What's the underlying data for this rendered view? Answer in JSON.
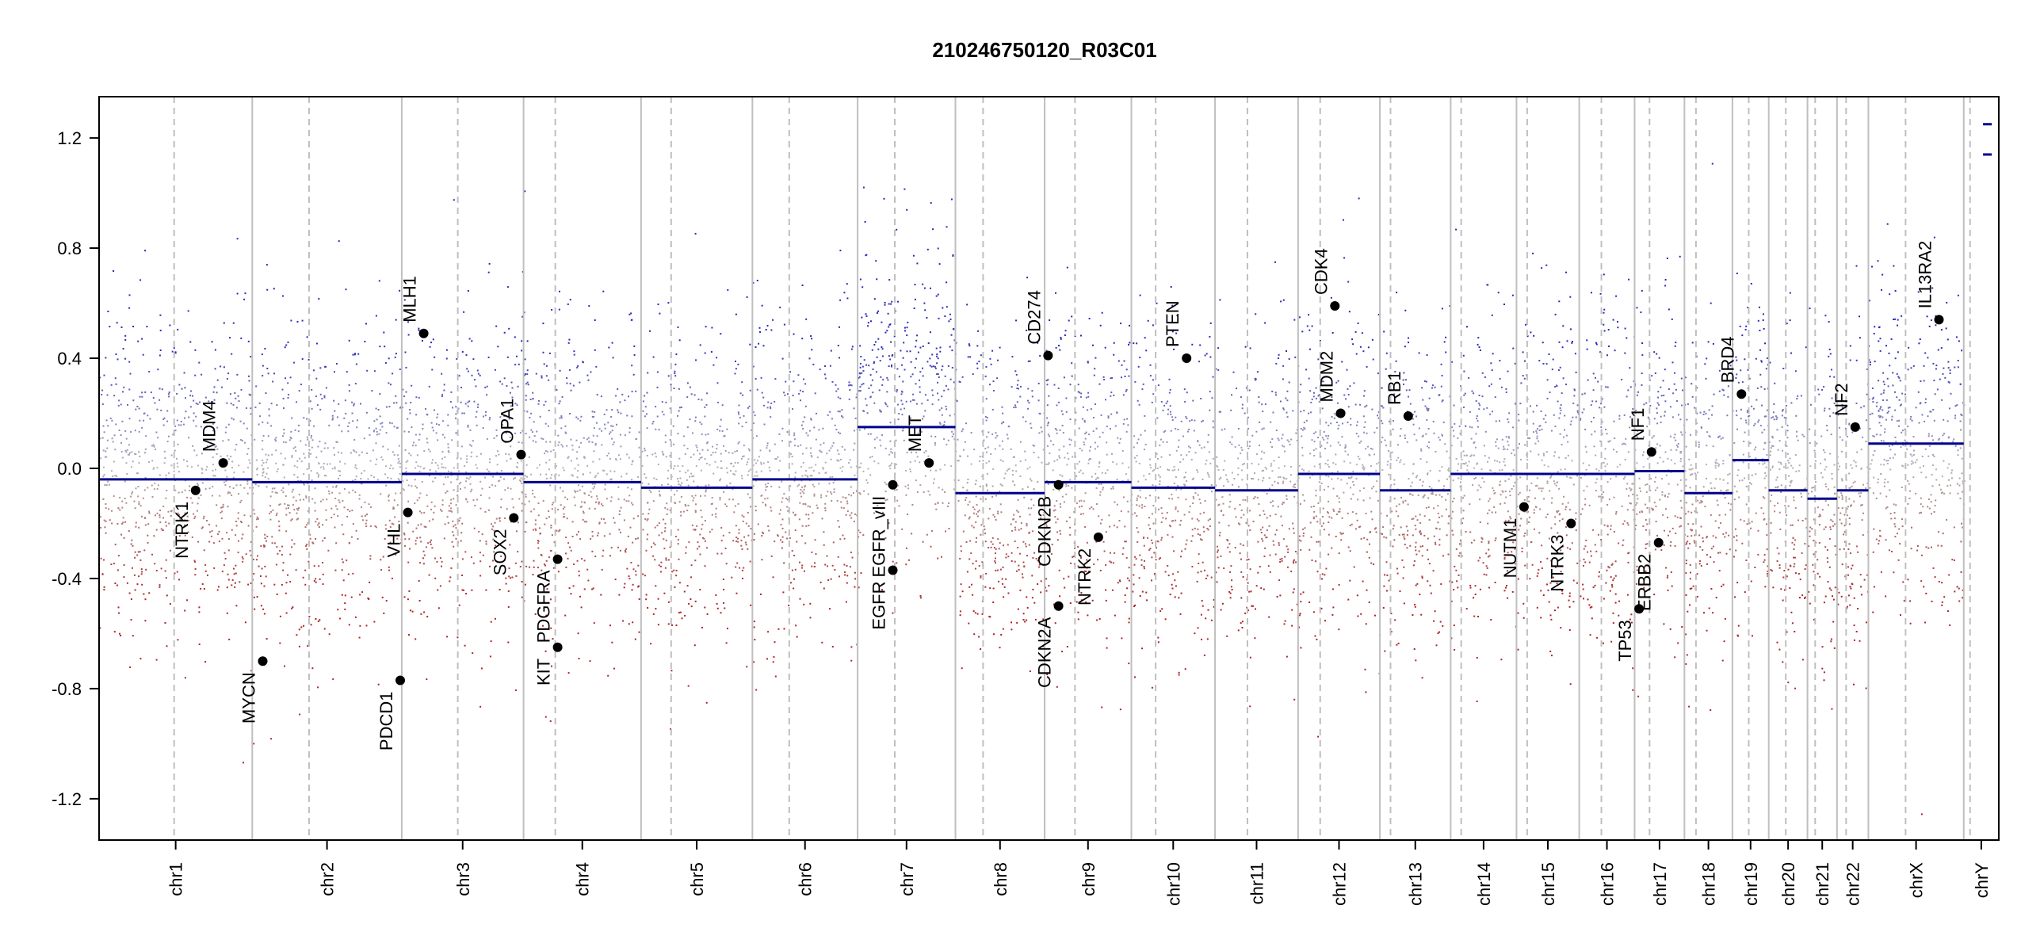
{
  "chart_data": {
    "type": "scatter",
    "title": "210246750120_R03C01",
    "xlabel": "",
    "ylabel": "",
    "ylim": [
      -1.35,
      1.35
    ],
    "y_ticks": [
      -1.2,
      -0.8,
      -0.4,
      0.0,
      0.4,
      0.8,
      1.2
    ],
    "y_tick_labels": [
      "-1.2",
      "-0.8",
      "-0.4",
      "0.0",
      "0.4",
      "0.8",
      "1.2"
    ],
    "colors": {
      "gain": "#3030b8",
      "loss": "#b52020",
      "neutral": "#9a9a9a",
      "segment": "#00008b",
      "boundary": "#bfbfbf",
      "centromere": "#bfbfbf"
    },
    "chromosomes": [
      {
        "name": "chr1",
        "length": 249,
        "centromere": 0.49,
        "segments": [
          {
            "from": 0,
            "to": 1,
            "value": -0.04
          }
        ]
      },
      {
        "name": "chr2",
        "length": 243,
        "centromere": 0.38,
        "segments": [
          {
            "from": 0,
            "to": 1,
            "value": -0.05
          }
        ]
      },
      {
        "name": "chr3",
        "length": 198,
        "centromere": 0.46,
        "segments": [
          {
            "from": 0,
            "to": 1,
            "value": -0.02
          }
        ]
      },
      {
        "name": "chr4",
        "length": 191,
        "centromere": 0.27,
        "segments": [
          {
            "from": 0,
            "to": 1,
            "value": -0.05
          }
        ]
      },
      {
        "name": "chr5",
        "length": 181,
        "centromere": 0.27,
        "segments": [
          {
            "from": 0,
            "to": 1,
            "value": -0.07
          }
        ]
      },
      {
        "name": "chr6",
        "length": 171,
        "centromere": 0.35,
        "segments": [
          {
            "from": 0,
            "to": 1,
            "value": -0.04
          }
        ]
      },
      {
        "name": "chr7",
        "length": 159,
        "centromere": 0.38,
        "segments": [
          {
            "from": 0,
            "to": 1,
            "value": 0.15
          }
        ]
      },
      {
        "name": "chr8",
        "length": 145,
        "centromere": 0.31,
        "segments": [
          {
            "from": 0,
            "to": 1,
            "value": -0.09
          }
        ]
      },
      {
        "name": "chr9",
        "length": 141,
        "centromere": 0.35,
        "segments": [
          {
            "from": 0,
            "to": 1,
            "value": -0.05
          }
        ]
      },
      {
        "name": "chr10",
        "length": 136,
        "centromere": 0.29,
        "segments": [
          {
            "from": 0,
            "to": 1,
            "value": -0.07
          }
        ]
      },
      {
        "name": "chr11",
        "length": 135,
        "centromere": 0.39,
        "segments": [
          {
            "from": 0,
            "to": 1,
            "value": -0.08
          }
        ]
      },
      {
        "name": "chr12",
        "length": 133,
        "centromere": 0.27,
        "segments": [
          {
            "from": 0,
            "to": 1,
            "value": -0.02
          }
        ]
      },
      {
        "name": "chr13",
        "length": 115,
        "centromere": 0.15,
        "segments": [
          {
            "from": 0,
            "to": 1,
            "value": -0.08
          }
        ]
      },
      {
        "name": "chr14",
        "length": 107,
        "centromere": 0.16,
        "segments": [
          {
            "from": 0,
            "to": 1,
            "value": -0.02
          }
        ]
      },
      {
        "name": "chr15",
        "length": 102,
        "centromere": 0.17,
        "segments": [
          {
            "from": 0,
            "to": 1,
            "value": -0.02
          }
        ]
      },
      {
        "name": "chr16",
        "length": 90,
        "centromere": 0.4,
        "segments": [
          {
            "from": 0,
            "to": 1,
            "value": -0.02
          }
        ]
      },
      {
        "name": "chr17",
        "length": 81,
        "centromere": 0.3,
        "segments": [
          {
            "from": 0,
            "to": 1,
            "value": -0.01
          }
        ]
      },
      {
        "name": "chr18",
        "length": 78,
        "centromere": 0.24,
        "segments": [
          {
            "from": 0,
            "to": 1,
            "value": -0.09
          }
        ]
      },
      {
        "name": "chr19",
        "length": 59,
        "centromere": 0.45,
        "segments": [
          {
            "from": 0,
            "to": 1,
            "value": 0.03
          }
        ]
      },
      {
        "name": "chr20",
        "length": 63,
        "centromere": 0.44,
        "segments": [
          {
            "from": 0,
            "to": 1,
            "value": -0.08
          }
        ]
      },
      {
        "name": "chr21",
        "length": 48,
        "centromere": 0.26,
        "segments": [
          {
            "from": 0,
            "to": 1,
            "value": -0.11
          }
        ]
      },
      {
        "name": "chr22",
        "length": 51,
        "centromere": 0.29,
        "segments": [
          {
            "from": 0,
            "to": 1,
            "value": -0.08
          }
        ]
      },
      {
        "name": "chrX",
        "length": 155,
        "centromere": 0.39,
        "segments": [
          {
            "from": 0,
            "to": 1,
            "value": 0.09
          }
        ]
      },
      {
        "name": "chrY",
        "length": 57,
        "centromere": 0.18,
        "segments": [
          {
            "from": 0.55,
            "to": 0.8,
            "value": 1.25
          },
          {
            "from": 0.55,
            "to": 0.8,
            "value": 1.14
          }
        ]
      }
    ],
    "genes": [
      {
        "name": "NTRK1",
        "chr": "chr1",
        "pos": 0.63,
        "value": -0.08,
        "label_side": "below"
      },
      {
        "name": "MDM4",
        "chr": "chr1",
        "pos": 0.81,
        "value": 0.02,
        "label_side": "above"
      },
      {
        "name": "MYCN",
        "chr": "chr2",
        "pos": 0.07,
        "value": -0.7,
        "label_side": "below"
      },
      {
        "name": "PDCD1",
        "chr": "chr2",
        "pos": 0.99,
        "value": -0.77,
        "label_side": "below"
      },
      {
        "name": "VHL",
        "chr": "chr3",
        "pos": 0.05,
        "value": -0.16,
        "label_side": "below"
      },
      {
        "name": "MLH1",
        "chr": "chr3",
        "pos": 0.18,
        "value": 0.49,
        "label_side": "above"
      },
      {
        "name": "SOX2",
        "chr": "chr3",
        "pos": 0.92,
        "value": -0.18,
        "label_side": "below"
      },
      {
        "name": "OPA1",
        "chr": "chr3",
        "pos": 0.98,
        "value": 0.05,
        "label_side": "above"
      },
      {
        "name": "PDGFRA",
        "chr": "chr4",
        "pos": 0.29,
        "value": -0.33,
        "label_side": "below"
      },
      {
        "name": "KIT",
        "chr": "chr4",
        "pos": 0.29,
        "value": -0.65,
        "label_side": "below"
      },
      {
        "name": "EGFR",
        "chr": "chr7",
        "pos": 0.36,
        "value": -0.37,
        "label_side": "below"
      },
      {
        "name": "EGFR_vIII",
        "chr": "chr7",
        "pos": 0.36,
        "value": -0.06,
        "label_side": "below"
      },
      {
        "name": "MET",
        "chr": "chr7",
        "pos": 0.73,
        "value": 0.02,
        "label_side": "above"
      },
      {
        "name": "CD274",
        "chr": "chr9",
        "pos": 0.04,
        "value": 0.41,
        "label_side": "above"
      },
      {
        "name": "CDKN2A",
        "chr": "chr9",
        "pos": 0.16,
        "value": -0.5,
        "label_side": "below"
      },
      {
        "name": "CDKN2B",
        "chr": "chr9",
        "pos": 0.16,
        "value": -0.06,
        "label_side": "below"
      },
      {
        "name": "NTRK2",
        "chr": "chr9",
        "pos": 0.62,
        "value": -0.25,
        "label_side": "below"
      },
      {
        "name": "PTEN",
        "chr": "chr10",
        "pos": 0.66,
        "value": 0.4,
        "label_side": "above"
      },
      {
        "name": "MDM2",
        "chr": "chr12",
        "pos": 0.52,
        "value": 0.2,
        "label_side": "above"
      },
      {
        "name": "CDK4",
        "chr": "chr12",
        "pos": 0.45,
        "value": 0.59,
        "label_side": "above"
      },
      {
        "name": "RB1",
        "chr": "chr13",
        "pos": 0.4,
        "value": 0.19,
        "label_side": "above"
      },
      {
        "name": "NUTM1",
        "chr": "chr15",
        "pos": 0.12,
        "value": -0.14,
        "label_side": "below"
      },
      {
        "name": "NTRK3",
        "chr": "chr15",
        "pos": 0.87,
        "value": -0.2,
        "label_side": "below"
      },
      {
        "name": "TP53",
        "chr": "chr17",
        "pos": 0.09,
        "value": -0.51,
        "label_side": "below"
      },
      {
        "name": "NF1",
        "chr": "chr17",
        "pos": 0.34,
        "value": 0.06,
        "label_side": "above"
      },
      {
        "name": "ERBB2",
        "chr": "chr17",
        "pos": 0.48,
        "value": -0.27,
        "label_side": "below"
      },
      {
        "name": "BRD4",
        "chr": "chr19",
        "pos": 0.25,
        "value": 0.27,
        "label_side": "above"
      },
      {
        "name": "NF2",
        "chr": "chr22",
        "pos": 0.58,
        "value": 0.15,
        "label_side": "above"
      },
      {
        "name": "IL13RA2",
        "chr": "chrX",
        "pos": 0.74,
        "value": 0.54,
        "label_side": "above"
      }
    ]
  }
}
